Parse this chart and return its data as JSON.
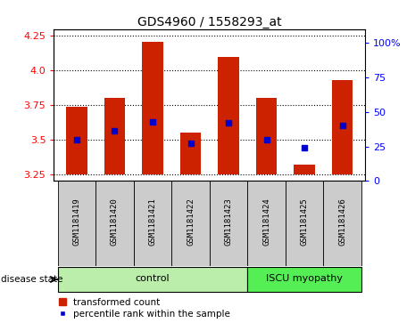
{
  "title": "GDS4960 / 1558293_at",
  "samples": [
    "GSM1181419",
    "GSM1181420",
    "GSM1181421",
    "GSM1181422",
    "GSM1181423",
    "GSM1181424",
    "GSM1181425",
    "GSM1181426"
  ],
  "bar_bottom": 3.25,
  "bar_tops": [
    3.74,
    3.8,
    4.21,
    3.55,
    4.1,
    3.8,
    3.32,
    3.93
  ],
  "percentile_values": [
    3.5,
    3.56,
    3.63,
    3.47,
    3.62,
    3.5,
    3.44,
    3.6
  ],
  "ylim_left": [
    3.2,
    4.3
  ],
  "ylim_right": [
    0,
    110
  ],
  "yticks_left": [
    3.25,
    3.5,
    3.75,
    4.0,
    4.25
  ],
  "yticks_right": [
    0,
    25,
    50,
    75,
    100
  ],
  "ytick_labels_right": [
    "0",
    "25",
    "50",
    "75",
    "100%"
  ],
  "bar_color": "#cc2200",
  "dot_color": "#0000cc",
  "bg_color": "#cccccc",
  "control_indices": [
    0,
    1,
    2,
    3,
    4
  ],
  "disease_indices": [
    5,
    6,
    7
  ],
  "control_label": "control",
  "disease_label": "ISCU myopathy",
  "control_color": "#bbeeaa",
  "disease_color": "#55ee55",
  "legend_bar_label": "transformed count",
  "legend_dot_label": "percentile rank within the sample",
  "disease_state_label": "disease state",
  "bar_width": 0.55,
  "n_samples": 8
}
